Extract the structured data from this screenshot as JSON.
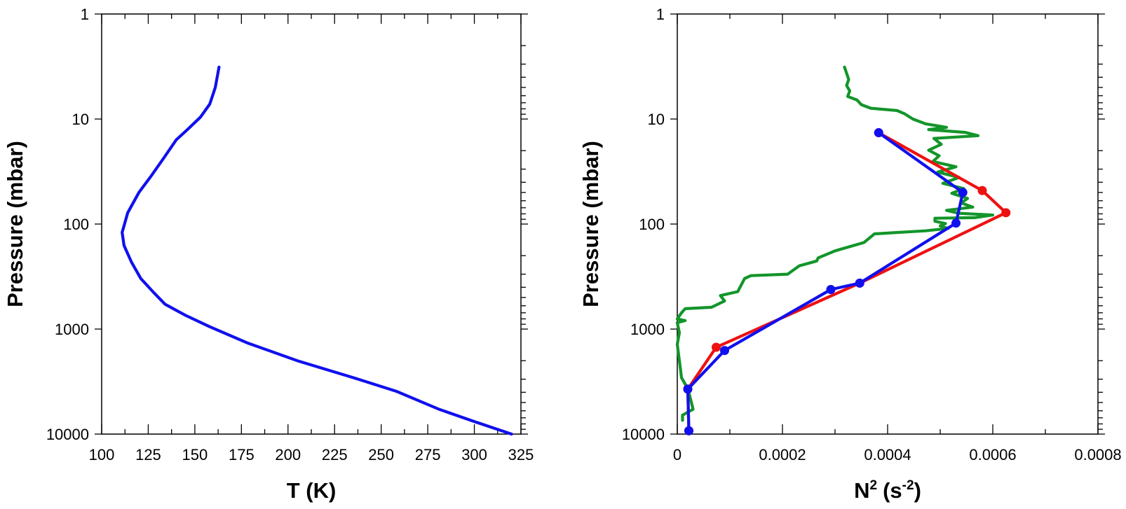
{
  "chart_data": [
    {
      "type": "line",
      "xlabel": "T (K)",
      "ylabel": "Pressure (mbar)",
      "xlim": [
        100,
        325
      ],
      "ylim": [
        10000,
        1
      ],
      "yscale": "log",
      "x_ticks": [
        100,
        125,
        150,
        175,
        200,
        225,
        250,
        275,
        300,
        325
      ],
      "x_tick_labels": [
        "100",
        "125",
        "150",
        "175",
        "200",
        "225",
        "250",
        "275",
        "300",
        "325"
      ],
      "y_ticks": [
        1,
        10,
        100,
        1000,
        10000
      ],
      "y_tick_labels": [
        "1",
        "10",
        "100",
        "1000",
        "10000"
      ],
      "series": [
        {
          "name": "temperature profile",
          "color": "#1010ee",
          "points": [
            [
              163,
              3.2
            ],
            [
              161,
              5.0
            ],
            [
              158,
              7.2
            ],
            [
              153,
              9.6
            ],
            [
              146,
              12.6
            ],
            [
              140,
              15.8
            ],
            [
              133,
              24
            ],
            [
              126,
              36
            ],
            [
              120,
              50
            ],
            [
              114,
              78
            ],
            [
              111,
              120
            ],
            [
              112,
              160
            ],
            [
              116,
              230
            ],
            [
              121,
              330
            ],
            [
              128,
              450
            ],
            [
              134,
              580
            ],
            [
              145,
              740
            ],
            [
              158,
              950
            ],
            [
              178,
              1350
            ],
            [
              205,
              2000
            ],
            [
              235,
              2900
            ],
            [
              258,
              3900
            ],
            [
              281,
              5800
            ],
            [
              300,
              7600
            ],
            [
              320,
              10000
            ]
          ]
        }
      ]
    },
    {
      "type": "line",
      "xlabel_main": "N",
      "xlabel_sup": "2",
      "xlabel_unit": "(s",
      "xlabel_unit_sup": "-2",
      "xlabel_close": ")",
      "ylabel": "Pressure (mbar)",
      "xlim": [
        0,
        0.0008
      ],
      "ylim": [
        10000,
        1
      ],
      "yscale": "log",
      "x_ticks": [
        0,
        0.0002,
        0.0004,
        0.0006,
        0.0008
      ],
      "x_tick_labels": [
        "0",
        "0.0002",
        "0.0004",
        "0.0006",
        "0.0008"
      ],
      "y_ticks": [
        1,
        10,
        100,
        1000,
        10000
      ],
      "y_tick_labels": [
        "1",
        "10",
        "100",
        "1000",
        "10000"
      ],
      "series": [
        {
          "name": "green",
          "color": "#13952a",
          "markers": false,
          "points": [
            [
              0.000318,
              3.2
            ],
            [
              0.000326,
              4.2
            ],
            [
              0.000322,
              4.8
            ],
            [
              0.000328,
              5.4
            ],
            [
              0.000324,
              6.1
            ],
            [
              0.000342,
              6.6
            ],
            [
              0.00035,
              7.3
            ],
            [
              0.000368,
              7.9
            ],
            [
              0.000418,
              8.3
            ],
            [
              0.000432,
              8.9
            ],
            [
              0.000448,
              10.0
            ],
            [
              0.000472,
              11.1
            ],
            [
              0.000512,
              12.0
            ],
            [
              0.000478,
              12.6
            ],
            [
              0.000548,
              13.4
            ],
            [
              0.000572,
              14.4
            ],
            [
              0.000488,
              15.3
            ],
            [
              0.000502,
              17.4
            ],
            [
              0.000478,
              19.8
            ],
            [
              0.000498,
              22.4
            ],
            [
              0.000486,
              25.4
            ],
            [
              0.00053,
              28.5
            ],
            [
              0.000495,
              32.0
            ],
            [
              0.000536,
              36.0
            ],
            [
              0.000505,
              41.0
            ],
            [
              0.000545,
              46.0
            ],
            [
              0.000522,
              51.0
            ],
            [
              0.000552,
              57.0
            ],
            [
              0.00054,
              63.0
            ],
            [
              0.000562,
              69.0
            ],
            [
              0.000512,
              74.0
            ],
            [
              0.000535,
              79.0
            ],
            [
              0.0006,
              82.0
            ],
            [
              0.000565,
              87.0
            ],
            [
              0.00049,
              88.0
            ],
            [
              0.00049,
              94.0
            ],
            [
              0.00051,
              99.0
            ],
            [
              0.0005,
              104.0
            ],
            [
              0.000515,
              110.0
            ],
            [
              0.000472,
              116.0
            ],
            [
              0.000375,
              124.0
            ],
            [
              0.000355,
              150.0
            ],
            [
              0.0003,
              180.0
            ],
            [
              0.000268,
              210.0
            ],
            [
              0.000265,
              225.0
            ],
            [
              0.000232,
              250.0
            ],
            [
              0.00021,
              300.0
            ],
            [
              0.00014,
              310.0
            ],
            [
              0.000128,
              330.0
            ],
            [
              0.000115,
              440.0
            ],
            [
              8.2e-05,
              480.0
            ],
            [
              9e-05,
              540.0
            ],
            [
              6.5e-05,
              620.0
            ],
            [
              1.5e-05,
              640.0
            ],
            [
              8e-06,
              700.0
            ],
            [
              0.0,
              800.0
            ],
            [
              1.5e-05,
              830.0
            ],
            [
              0.0,
              870.0
            ],
            [
              4e-06,
              1080.0
            ],
            [
              0.0,
              1400.0
            ],
            [
              5e-06,
              2200.0
            ],
            [
              8e-06,
              2900.0
            ],
            [
              2e-05,
              3700.0
            ],
            [
              2.5e-05,
              4600.0
            ],
            [
              3e-05,
              5800.0
            ],
            [
              1e-05,
              6600.0
            ],
            [
              1e-05,
              7400.0
            ]
          ]
        },
        {
          "name": "red",
          "color": "#ee1111",
          "markers": true,
          "points": [
            [
              0.000383,
              13.5
            ],
            [
              0.00058,
              48
            ],
            [
              0.000625,
              78
            ],
            [
              0.000347,
              365
            ],
            [
              7.4e-05,
              1490
            ],
            [
              2e-05,
              3730
            ],
            [
              2.2e-05,
              9300
            ]
          ]
        },
        {
          "name": "blue",
          "color": "#1010ee",
          "markers": true,
          "points": [
            [
              0.000383,
              13.5
            ],
            [
              0.000543,
              50
            ],
            [
              0.00053,
              98
            ],
            [
              0.000347,
              365
            ],
            [
              0.000292,
              420
            ],
            [
              9e-05,
              1600
            ],
            [
              2e-05,
              3730
            ],
            [
              2.2e-05,
              9300
            ]
          ]
        }
      ]
    }
  ]
}
